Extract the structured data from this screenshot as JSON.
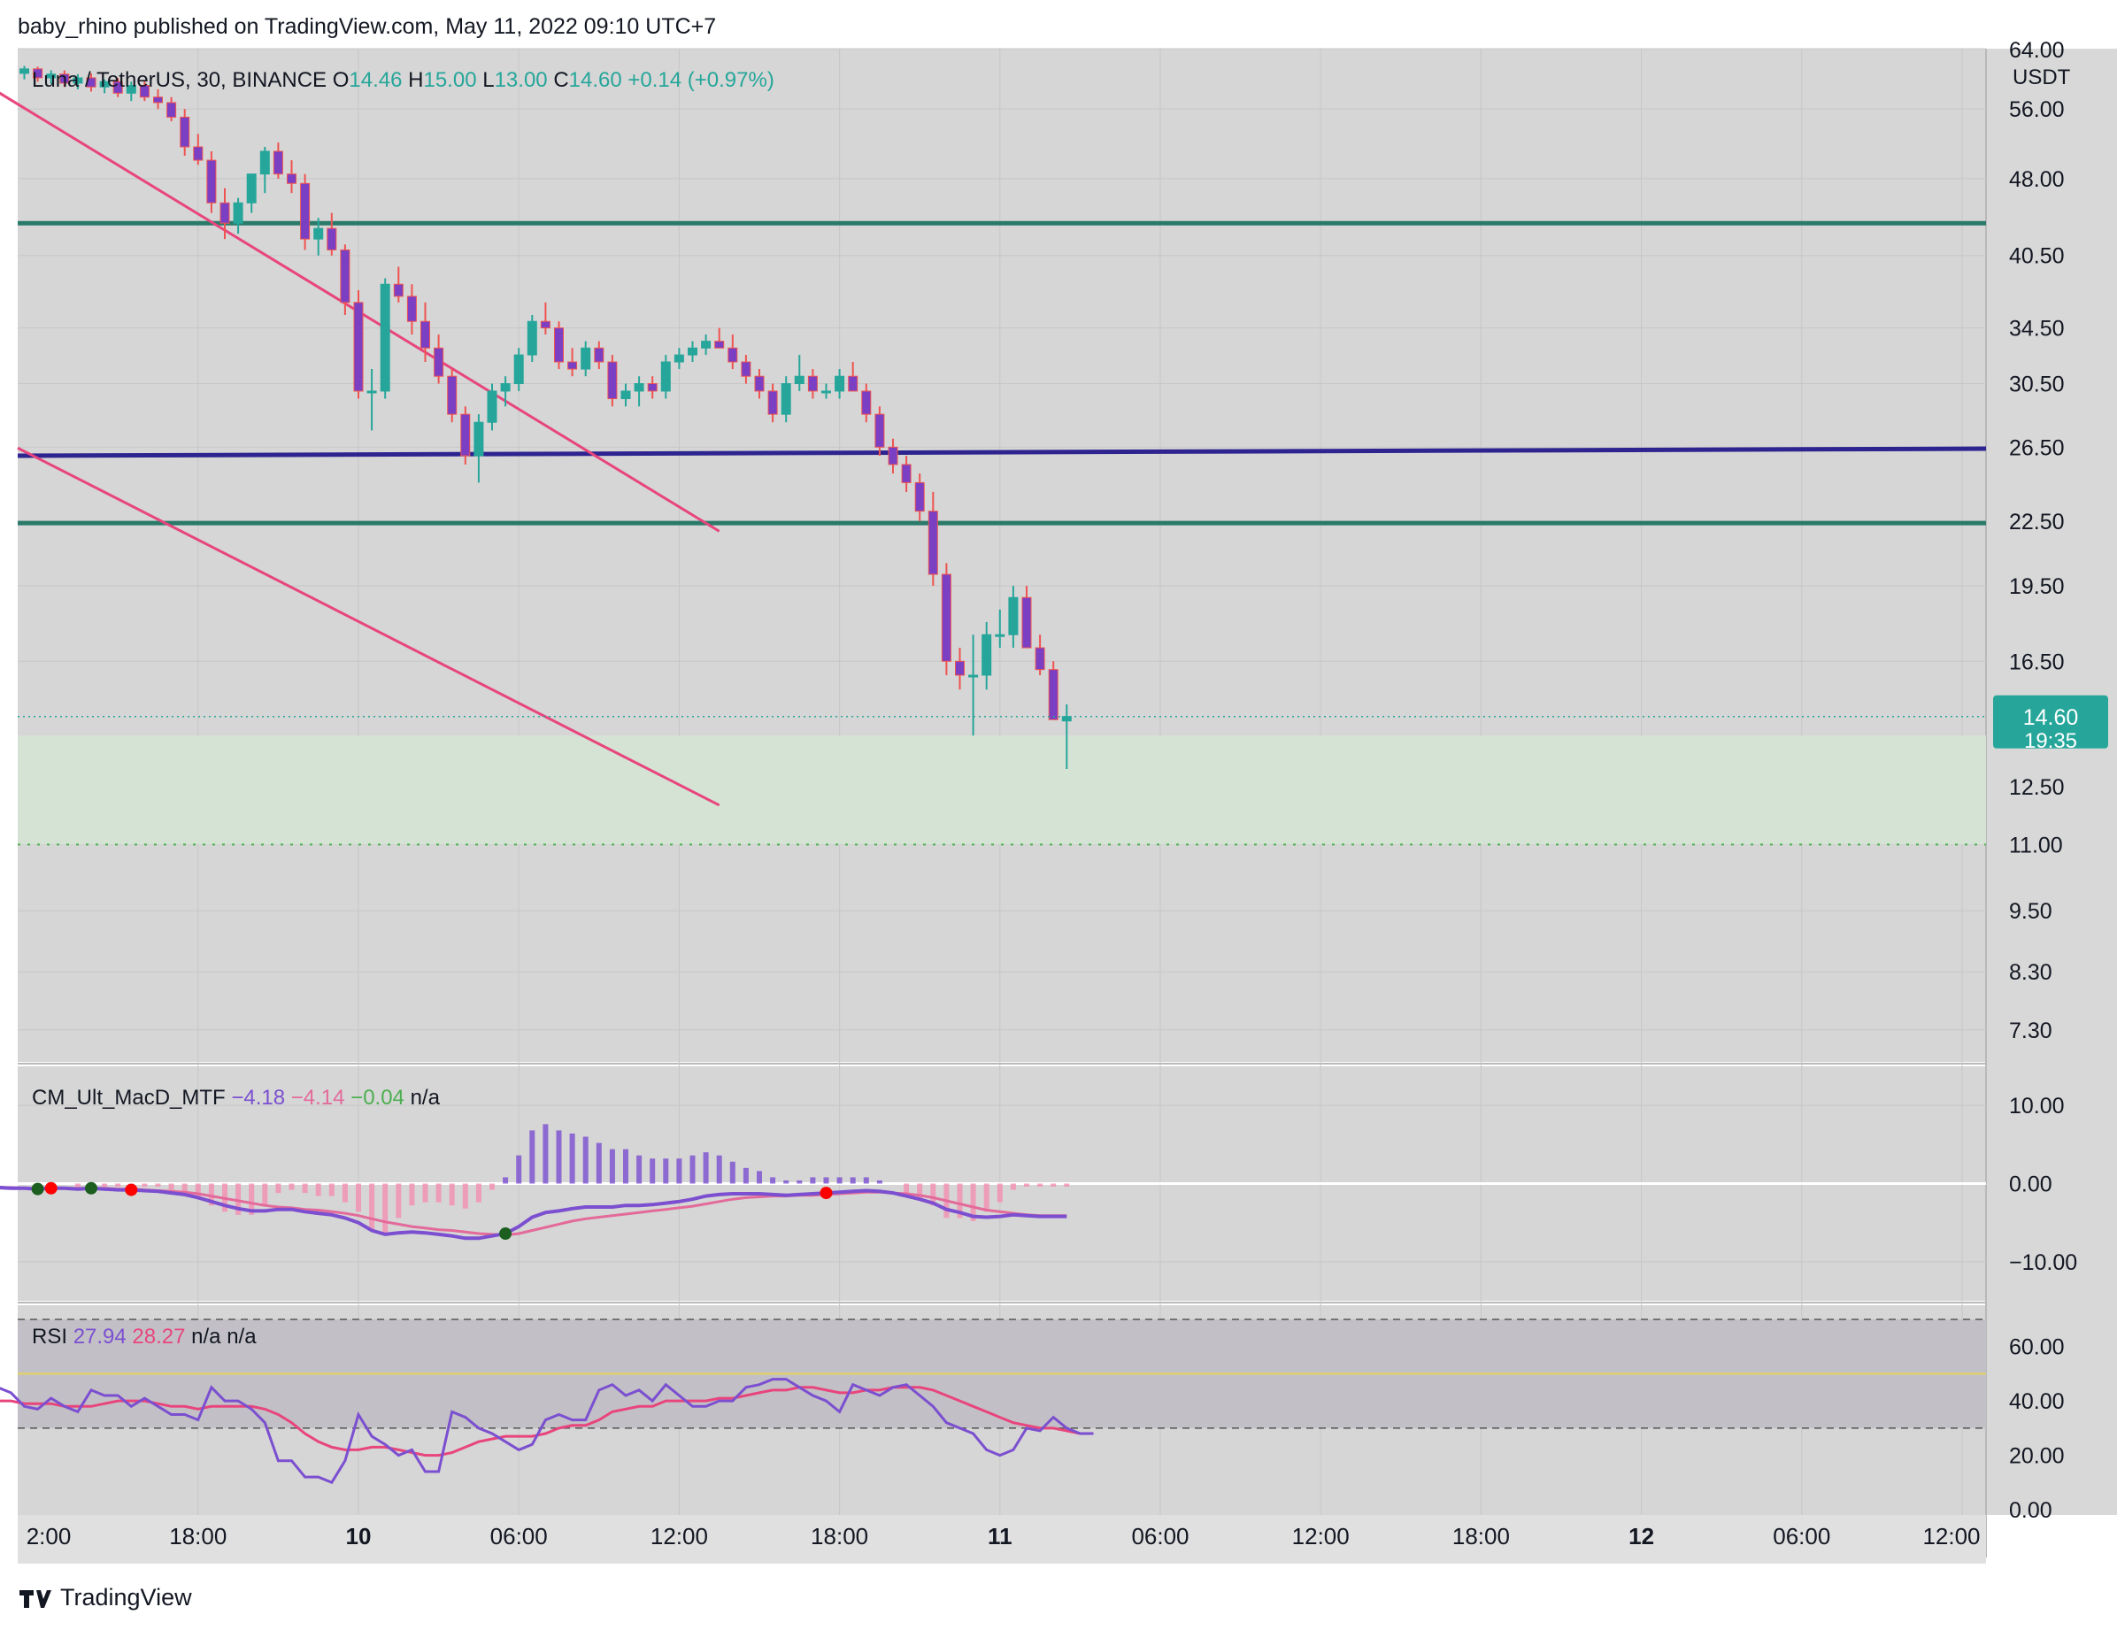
{
  "header": {
    "published": "baby_rhino published on TradingView.com, May 11, 2022 09:10 UTC+7"
  },
  "footer": {
    "brand": "TradingView"
  },
  "colors": {
    "up": "#26a69a",
    "down": "#7b3fc4",
    "wick_down": "#ef5350",
    "channel": "#e8457c",
    "support": "#2a7a6a",
    "resistance": "#2e2490",
    "macd": "#7b4fd0",
    "signal": "#e36a9a",
    "rsi": "#7b4fd0",
    "rsi_ma": "#e8457c"
  },
  "chart_data": [
    {
      "type": "candlestick",
      "legend": {
        "symbol": "Luna / TetherUS, 30, BINANCE",
        "o_label": "O",
        "o": "14.46",
        "h_label": "H",
        "h": "15.00",
        "l_label": "L",
        "l": "13.00",
        "c_label": "C",
        "c": "14.60",
        "change": "+0.14 (+0.97%)"
      },
      "unit": "USDT",
      "scale": "log",
      "ylim": [
        6.8,
        64
      ],
      "y_ticks": [
        "64.00",
        "56.00",
        "48.00",
        "40.50",
        "34.50",
        "30.50",
        "26.50",
        "22.50",
        "19.50",
        "16.50",
        "12.50",
        "11.00",
        "9.50",
        "8.30",
        "7.30"
      ],
      "x_ticks": [
        "2:00",
        "18:00",
        "10",
        "06:00",
        "12:00",
        "18:00",
        "11",
        "06:00",
        "12:00",
        "18:00",
        "12",
        "06:00",
        "12:00"
      ],
      "price_tag": {
        "price": "14.60",
        "countdown": "19:35"
      },
      "horizontal_lines": [
        {
          "price": 43.5,
          "role": "support"
        },
        {
          "price": 26.0,
          "role": "resistance"
        },
        {
          "price": 22.4,
          "role": "support"
        }
      ],
      "zone": [
        11.0,
        14.0
      ],
      "candles": [
        [
          61.5,
          62.0,
          60.5,
          61.0
        ],
        [
          61.0,
          61.5,
          60.0,
          60.6
        ],
        [
          60.6,
          61.6,
          59.8,
          61.2
        ],
        [
          61.2,
          61.5,
          59.5,
          60.0
        ],
        [
          60.0,
          61.0,
          59.2,
          60.5
        ],
        [
          60.5,
          61.0,
          58.8,
          59.3
        ],
        [
          59.3,
          60.5,
          58.5,
          60.0
        ],
        [
          60.0,
          60.6,
          58.2,
          58.8
        ],
        [
          58.8,
          59.8,
          58.0,
          59.5
        ],
        [
          59.5,
          60.0,
          57.5,
          58.0
        ],
        [
          58.0,
          59.5,
          57.0,
          59.0
        ],
        [
          59.0,
          59.6,
          57.0,
          57.5
        ],
        [
          57.5,
          58.5,
          56.0,
          56.8
        ],
        [
          56.8,
          57.5,
          54.5,
          55.0
        ],
        [
          55.0,
          56.0,
          50.5,
          51.5
        ],
        [
          51.5,
          53.0,
          49.5,
          50.0
        ],
        [
          50.0,
          51.0,
          44.5,
          45.5
        ],
        [
          45.5,
          47.0,
          42.0,
          43.5
        ],
        [
          43.5,
          46.0,
          42.5,
          45.5
        ],
        [
          45.5,
          48.5,
          44.5,
          48.5
        ],
        [
          48.5,
          51.5,
          46.5,
          51.0
        ],
        [
          51.0,
          52.0,
          48.0,
          48.5
        ],
        [
          48.5,
          50.0,
          46.5,
          47.5
        ],
        [
          47.5,
          48.5,
          41.0,
          42.0
        ],
        [
          42.0,
          44.0,
          40.5,
          43.0
        ],
        [
          43.0,
          44.5,
          40.5,
          41.0
        ],
        [
          41.0,
          41.5,
          35.5,
          36.5
        ],
        [
          36.5,
          37.5,
          29.5,
          30.0
        ],
        [
          30.0,
          31.5,
          27.5,
          30.0
        ],
        [
          30.0,
          38.5,
          29.5,
          38.0
        ],
        [
          38.0,
          39.5,
          36.5,
          37.0
        ],
        [
          37.0,
          38.0,
          34.0,
          35.0
        ],
        [
          35.0,
          36.5,
          32.0,
          33.0
        ],
        [
          33.0,
          34.0,
          30.5,
          31.0
        ],
        [
          31.0,
          31.5,
          28.0,
          28.5
        ],
        [
          28.5,
          29.0,
          25.5,
          26.0
        ],
        [
          26.0,
          28.5,
          24.5,
          28.0
        ],
        [
          28.0,
          30.5,
          27.5,
          30.0
        ],
        [
          30.0,
          31.0,
          29.0,
          30.5
        ],
        [
          30.5,
          33.0,
          30.0,
          32.5
        ],
        [
          32.5,
          35.5,
          32.0,
          35.0
        ],
        [
          35.0,
          36.5,
          34.0,
          34.5
        ],
        [
          34.5,
          35.0,
          31.5,
          32.0
        ],
        [
          32.0,
          33.0,
          31.0,
          31.5
        ],
        [
          31.5,
          33.5,
          31.0,
          33.0
        ],
        [
          33.0,
          33.5,
          31.5,
          32.0
        ],
        [
          32.0,
          32.5,
          29.0,
          29.5
        ],
        [
          29.5,
          30.5,
          29.0,
          30.0
        ],
        [
          30.0,
          31.0,
          29.0,
          30.5
        ],
        [
          30.5,
          31.0,
          29.5,
          30.0
        ],
        [
          30.0,
          32.5,
          29.5,
          32.0
        ],
        [
          32.0,
          33.0,
          31.5,
          32.5
        ],
        [
          32.5,
          33.5,
          32.0,
          33.0
        ],
        [
          33.0,
          34.0,
          32.5,
          33.5
        ],
        [
          33.5,
          34.5,
          33.0,
          33.0
        ],
        [
          33.0,
          34.0,
          31.5,
          32.0
        ],
        [
          32.0,
          32.5,
          30.5,
          31.0
        ],
        [
          31.0,
          31.5,
          29.5,
          30.0
        ],
        [
          30.0,
          30.5,
          28.0,
          28.5
        ],
        [
          28.5,
          31.0,
          28.0,
          30.5
        ],
        [
          30.5,
          32.5,
          30.0,
          31.0
        ],
        [
          31.0,
          31.5,
          29.5,
          30.0
        ],
        [
          30.0,
          30.5,
          29.5,
          30.0
        ],
        [
          30.0,
          31.5,
          29.5,
          31.0
        ],
        [
          31.0,
          32.0,
          30.0,
          30.0
        ],
        [
          30.0,
          30.5,
          28.0,
          28.5
        ],
        [
          28.5,
          29.0,
          26.0,
          26.5
        ],
        [
          26.5,
          27.0,
          25.0,
          25.5
        ],
        [
          25.5,
          26.0,
          24.0,
          24.5
        ],
        [
          24.5,
          25.0,
          22.5,
          23.0
        ],
        [
          23.0,
          24.0,
          19.5,
          20.0
        ],
        [
          20.0,
          20.5,
          16.0,
          16.5
        ],
        [
          16.5,
          17.0,
          15.5,
          16.0
        ],
        [
          16.0,
          17.5,
          14.0,
          16.0
        ],
        [
          16.0,
          18.0,
          15.5,
          17.5
        ],
        [
          17.5,
          18.5,
          17.0,
          17.5
        ],
        [
          17.5,
          19.5,
          17.0,
          19.0
        ],
        [
          19.0,
          19.5,
          17.0,
          17.0
        ],
        [
          17.0,
          17.5,
          16.0,
          16.2
        ],
        [
          16.2,
          16.5,
          14.5,
          14.5
        ],
        [
          14.46,
          15.0,
          13.0,
          14.6
        ]
      ],
      "channel": {
        "upper": [
          [
            "00:00",
            61.5
          ],
          [
            "13:30",
            22.0
          ]
        ],
        "lower": [
          [
            "00:00",
            41.5
          ],
          [
            "13:30",
            12.0
          ]
        ]
      }
    },
    {
      "type": "line",
      "name": "CM_Ult_MacD_MTF",
      "values": [
        "−4.18",
        "−4.14",
        "−0.04",
        "n/a"
      ],
      "y_ticks": [
        "10.00",
        "0.00",
        "−10.00"
      ],
      "ylim": [
        -15,
        15
      ],
      "macd": [
        -0.5,
        -0.6,
        -0.6,
        -0.7,
        -0.6,
        -0.6,
        -0.7,
        -0.6,
        -0.7,
        -0.8,
        -0.8,
        -0.9,
        -1.0,
        -1.2,
        -1.4,
        -1.8,
        -2.3,
        -2.8,
        -3.2,
        -3.5,
        -3.5,
        -3.3,
        -3.3,
        -3.6,
        -3.8,
        -4.0,
        -4.4,
        -5.0,
        -6.0,
        -6.5,
        -6.3,
        -6.2,
        -6.3,
        -6.5,
        -6.7,
        -7.0,
        -7.0,
        -6.7,
        -6.4,
        -5.5,
        -4.3,
        -3.7,
        -3.5,
        -3.2,
        -3.0,
        -3.0,
        -3.0,
        -2.8,
        -2.8,
        -2.7,
        -2.5,
        -2.3,
        -2.0,
        -1.6,
        -1.4,
        -1.3,
        -1.3,
        -1.3,
        -1.4,
        -1.5,
        -1.4,
        -1.3,
        -1.2,
        -1.1,
        -1.0,
        -0.9,
        -1.0,
        -1.2,
        -1.6,
        -2.0,
        -2.5,
        -3.3,
        -3.7,
        -4.2,
        -4.3,
        -4.2,
        -4.0,
        -4.1,
        -4.2,
        -4.2,
        -4.2
      ],
      "signal": [
        -0.5,
        -0.5,
        -0.6,
        -0.6,
        -0.6,
        -0.6,
        -0.6,
        -0.6,
        -0.6,
        -0.7,
        -0.7,
        -0.8,
        -0.9,
        -1.0,
        -1.1,
        -1.3,
        -1.6,
        -1.9,
        -2.2,
        -2.5,
        -2.8,
        -3.0,
        -3.1,
        -3.3,
        -3.4,
        -3.6,
        -3.8,
        -4.1,
        -4.5,
        -4.9,
        -5.2,
        -5.5,
        -5.7,
        -5.9,
        -6.0,
        -6.2,
        -6.4,
        -6.5,
        -6.6,
        -6.4,
        -6.0,
        -5.6,
        -5.2,
        -4.8,
        -4.5,
        -4.3,
        -4.1,
        -3.9,
        -3.7,
        -3.5,
        -3.3,
        -3.1,
        -2.9,
        -2.6,
        -2.3,
        -2.0,
        -1.8,
        -1.7,
        -1.6,
        -1.6,
        -1.5,
        -1.5,
        -1.4,
        -1.3,
        -1.2,
        -1.1,
        -1.1,
        -1.2,
        -1.3,
        -1.5,
        -1.8,
        -2.2,
        -2.6,
        -3.0,
        -3.4,
        -3.6,
        -3.8,
        -4.0,
        -4.1,
        -4.1,
        -4.1
      ]
    },
    {
      "type": "line",
      "name": "RSI",
      "values": [
        "27.94",
        "28.27",
        "n/a",
        "n/a"
      ],
      "y_ticks": [
        "60.00",
        "40.00",
        "20.00",
        "0.00"
      ],
      "ylim": [
        0,
        70
      ],
      "bands": [
        30,
        50,
        70
      ],
      "rsi": [
        45,
        43,
        38,
        37,
        41,
        38,
        36,
        44,
        42,
        42,
        38,
        41,
        38,
        35,
        35,
        33,
        45,
        40,
        40,
        37,
        32,
        18,
        18,
        12,
        12,
        10,
        18,
        35,
        27,
        24,
        20,
        22,
        14,
        14,
        36,
        34,
        30,
        28,
        25,
        22,
        24,
        33,
        35,
        33,
        33,
        44,
        46,
        42,
        44,
        40,
        46,
        42,
        38,
        38,
        40,
        40,
        45,
        46,
        48,
        48,
        45,
        42,
        40,
        36,
        46,
        44,
        42,
        45,
        46,
        42,
        38,
        32,
        30,
        28,
        22,
        20,
        22,
        30,
        29,
        34,
        30,
        28,
        28
      ],
      "rsi_ma": [
        40,
        40,
        39,
        39,
        39,
        38,
        38,
        38,
        39,
        40,
        40,
        40,
        39,
        38,
        38,
        37,
        38,
        38,
        38,
        38,
        37,
        35,
        32,
        28,
        25,
        23,
        22,
        22,
        23,
        23,
        22,
        21,
        20,
        20,
        21,
        23,
        25,
        26,
        27,
        27,
        27,
        28,
        30,
        31,
        31,
        33,
        36,
        37,
        38,
        38,
        40,
        40,
        40,
        40,
        41,
        41,
        42,
        43,
        44,
        44,
        45,
        45,
        44,
        43,
        43,
        44,
        44,
        45,
        45,
        45,
        44,
        42,
        40,
        38,
        36,
        34,
        32,
        31,
        30,
        30,
        29,
        28,
        28
      ]
    }
  ]
}
